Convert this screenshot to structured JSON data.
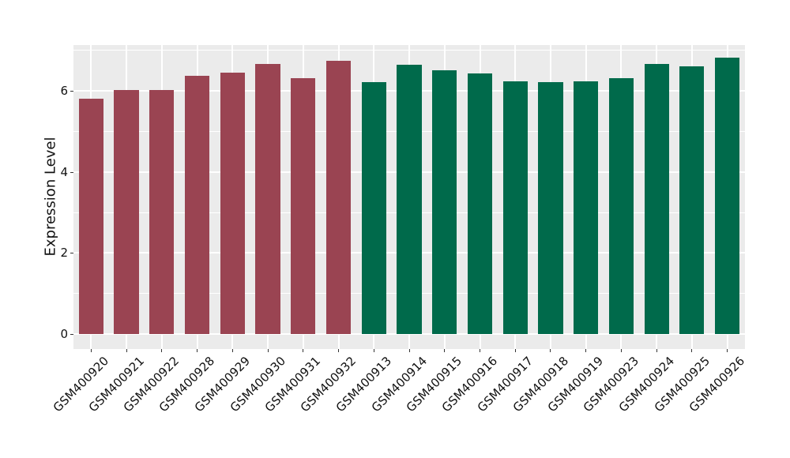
{
  "chart_data": {
    "type": "bar",
    "title": "",
    "xlabel": "",
    "ylabel": "Expression Level",
    "categories": [
      "GSM400920",
      "GSM400921",
      "GSM400922",
      "GSM400928",
      "GSM400929",
      "GSM400930",
      "GSM400931",
      "GSM400932",
      "GSM400913",
      "GSM400914",
      "GSM400915",
      "GSM400916",
      "GSM400917",
      "GSM400918",
      "GSM400919",
      "GSM400923",
      "GSM400924",
      "GSM400925",
      "GSM400926"
    ],
    "values": [
      5.81,
      6.02,
      6.02,
      6.38,
      6.45,
      6.67,
      6.32,
      6.75,
      6.22,
      6.64,
      6.51,
      6.42,
      6.23,
      6.22,
      6.23,
      6.31,
      6.66,
      6.61,
      6.81
    ],
    "bar_groups": [
      "group1",
      "group1",
      "group1",
      "group1",
      "group1",
      "group1",
      "group1",
      "group1",
      "group2",
      "group2",
      "group2",
      "group2",
      "group2",
      "group2",
      "group2",
      "group2",
      "group2",
      "group2",
      "group2"
    ],
    "group_colors": {
      "group1": "#9A4452",
      "group2": "#006A4B"
    },
    "ylim": [
      -0.37,
      7.13
    ],
    "yticks": [
      0,
      2,
      4,
      6
    ],
    "yticks_minor": [
      1,
      3,
      5,
      7
    ],
    "grid": "horizontal major+minor white lines, vertical major white lines at category centers",
    "legend_position": "none",
    "x_tick_rotation_deg": 45,
    "bar_width_fraction": 0.7,
    "panel_background": "#EBEBEB",
    "grid_color": "#FFFFFF",
    "text_color": "#111111",
    "tick_color": "#333333"
  }
}
